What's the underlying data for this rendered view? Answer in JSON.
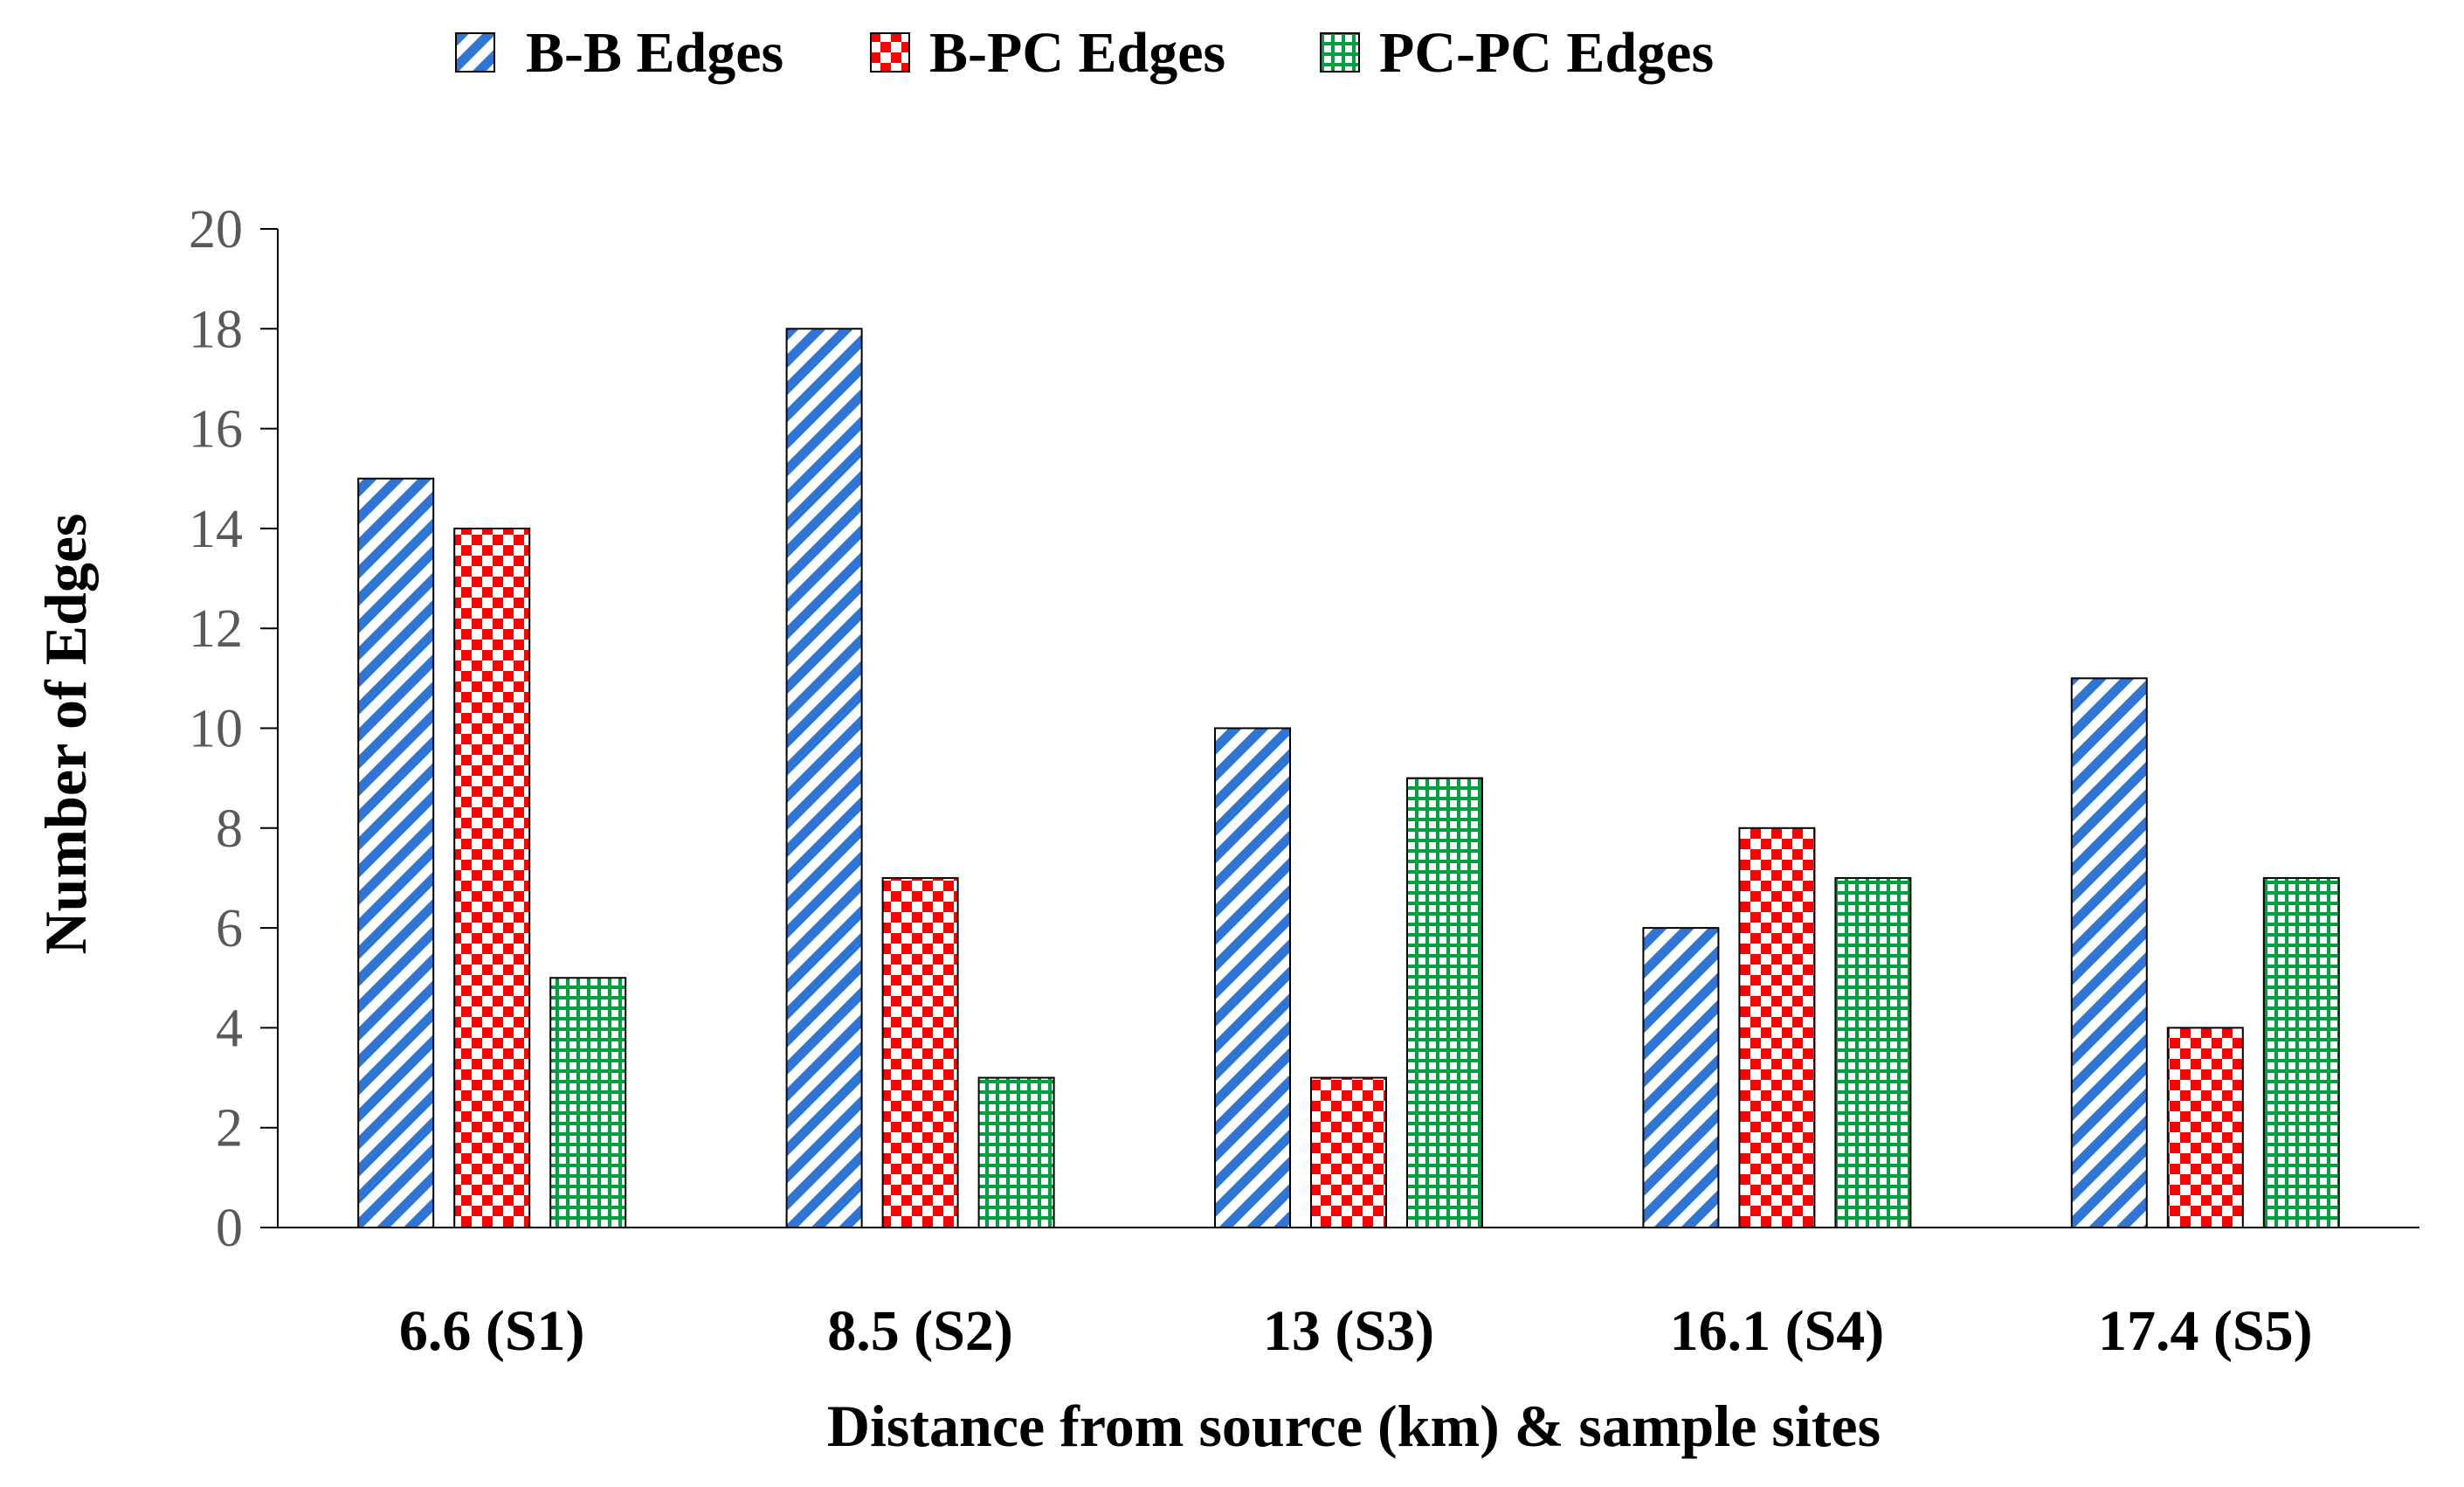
{
  "chart_data": {
    "type": "bar",
    "title": "",
    "xlabel": "Distance from source (km) & sample sites",
    "ylabel": "Number of  Edges",
    "ylim": [
      0,
      20
    ],
    "yticks": [
      "0",
      "2",
      "4",
      "6",
      "8",
      "10",
      "12",
      "14",
      "16",
      "18",
      "20"
    ],
    "categories": [
      "6.6 (S1)",
      "8.5 (S2)",
      "13 (S3)",
      "16.1 (S4)",
      "17.4 (S5)"
    ],
    "legend_position": "top",
    "grid": false,
    "series": [
      {
        "name": "B-B Edges",
        "values": [
          15,
          18,
          10,
          6,
          11
        ],
        "color": "#2E75D6",
        "pattern": "diagonal-stripes"
      },
      {
        "name": "B-PC Edges",
        "values": [
          14,
          7,
          3,
          8,
          4
        ],
        "color": "#FF0000",
        "pattern": "checkerboard"
      },
      {
        "name": "PC-PC Edges",
        "values": [
          5,
          3,
          9,
          7,
          7
        ],
        "color": "#00A040",
        "pattern": "grid"
      }
    ]
  }
}
